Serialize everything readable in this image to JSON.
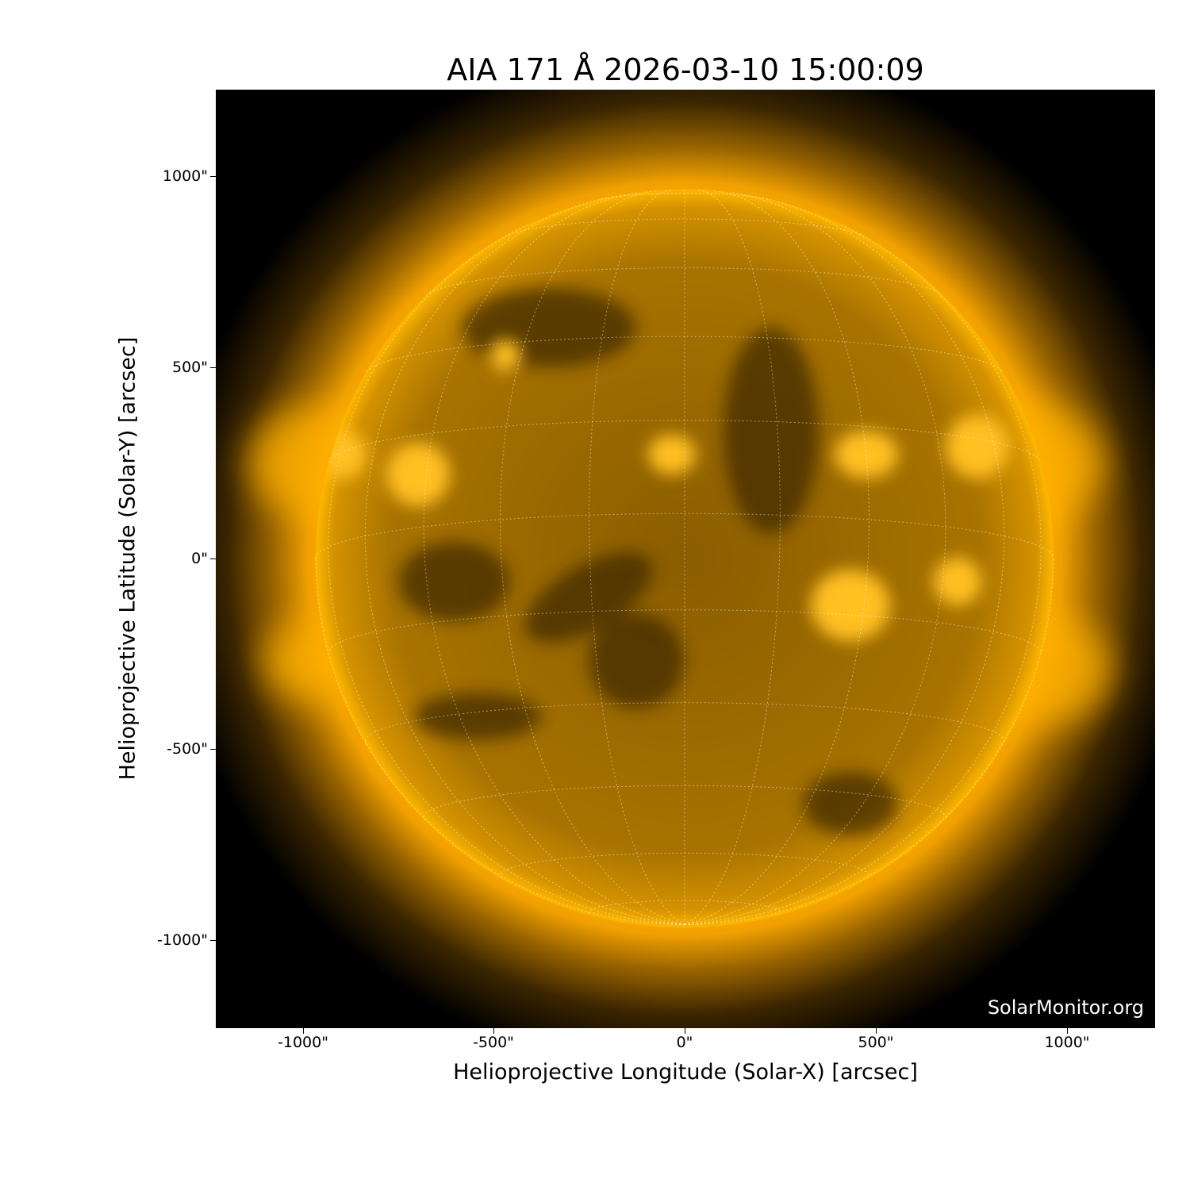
{
  "title": "AIA 171 Å 2026-03-10 15:00:09",
  "xlabel": "Helioprojective Longitude (Solar-X) [arcsec]",
  "ylabel": "Helioprojective Latitude (Solar-Y) [arcsec]",
  "xticks": [
    "-1000\"",
    "-500\"",
    "0\"",
    "500\"",
    "1000\""
  ],
  "yticks": [
    "1000\"",
    "500\"",
    "0\"",
    "-500\"",
    "-1000\""
  ],
  "xtick_values": [
    -1000,
    -500,
    0,
    500,
    1000
  ],
  "ytick_values": [
    1000,
    500,
    0,
    -500,
    -1000
  ],
  "watermark": "SolarMonitor.org",
  "colors": {
    "disk": "#b07a00",
    "limb": "#ffb000",
    "background": "#000000",
    "grid": "#ffffff"
  },
  "grid": {
    "style": "dotted",
    "spacing_deg": 15
  }
}
